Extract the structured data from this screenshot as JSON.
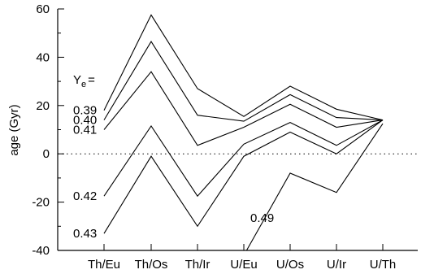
{
  "chart_data": {
    "type": "line",
    "title": "",
    "xlabel": "",
    "ylabel": "age (Gyr)",
    "categories": [
      "Th/Eu",
      "Th/Os",
      "Th/Ir",
      "U/Eu",
      "U/Os",
      "U/Ir",
      "U/Th"
    ],
    "ylim": [
      -40,
      60
    ],
    "yticks": [
      -40,
      -20,
      0,
      20,
      40,
      60
    ],
    "grid": false,
    "reference_line": {
      "y": 0,
      "style": "dotted"
    },
    "legend_title": "Y_e =",
    "annotation": "Y",
    "annotation_sub": "e",
    "annotation_eq": "=",
    "series": [
      {
        "name": "0.39",
        "values": [
          18,
          57.5,
          27,
          15.5,
          28,
          18.5,
          14
        ]
      },
      {
        "name": "0.40",
        "values": [
          14,
          46.5,
          16,
          13.5,
          24.5,
          15,
          14
        ]
      },
      {
        "name": "0.41",
        "values": [
          10,
          34,
          3.5,
          11,
          20.5,
          11,
          14
        ]
      },
      {
        "name": "0.42",
        "values": [
          -17.5,
          11.5,
          -17.5,
          4,
          13,
          3.5,
          14
        ]
      },
      {
        "name": "0.43",
        "values": [
          -33,
          -1,
          -30,
          -1,
          9,
          0,
          14
        ]
      },
      {
        "name": "0.49",
        "values": [
          null,
          null,
          null,
          -42,
          -8,
          -16,
          12.5
        ]
      }
    ]
  }
}
